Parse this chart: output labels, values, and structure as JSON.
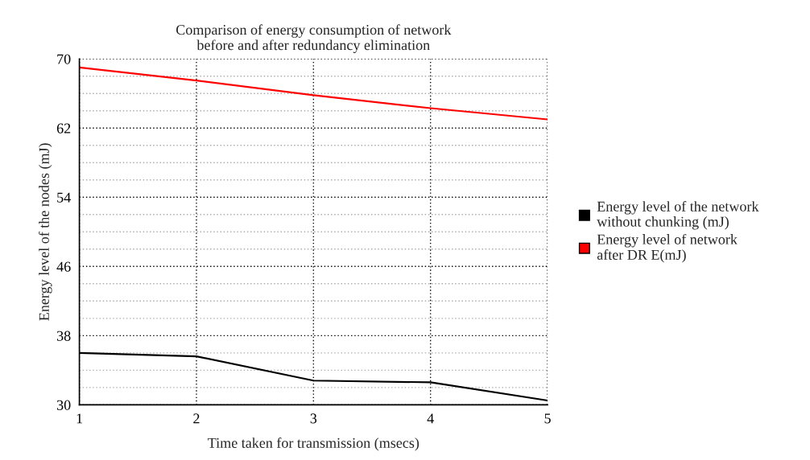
{
  "chart_data": {
    "type": "line",
    "title": "Comparison of energy consumption of network\nbefore and after redundancy elimination",
    "xlabel": "Time taken for transmission (msecs)",
    "ylabel": "Energy level of the nodes (mJ)",
    "x": [
      1,
      2,
      3,
      4,
      5
    ],
    "series": [
      {
        "name": "Energy level of the network\nwithout chunking (mJ)",
        "color": "#000000",
        "values": [
          36.0,
          35.6,
          32.8,
          32.6,
          30.5
        ]
      },
      {
        "name": "Energy level of network\nafter DR E(mJ)",
        "color": "#ff0000",
        "values": [
          69.0,
          67.5,
          65.8,
          64.3,
          63.0
        ]
      }
    ],
    "xlim": [
      1,
      5
    ],
    "xticks": [
      1,
      2,
      3,
      4,
      5
    ],
    "ylim": [
      30,
      70
    ],
    "yticks": [
      30,
      {
        "value": 32,
        "label": null
      },
      {
        "value": 34,
        "label": null
      },
      {
        "value": 36,
        "label": null
      },
      38,
      {
        "value": 40,
        "label": null
      },
      {
        "value": 42,
        "label": null
      },
      {
        "value": 44,
        "label": null
      },
      46,
      {
        "value": 48,
        "label": null
      },
      {
        "value": 50,
        "label": null
      },
      {
        "value": 52,
        "label": null
      },
      54,
      {
        "value": 56,
        "label": null
      },
      {
        "value": 58,
        "label": null
      },
      {
        "value": 60,
        "label": null
      },
      62,
      {
        "value": 64,
        "label": null
      },
      {
        "value": 66,
        "label": null
      },
      {
        "value": 68,
        "label": null
      },
      70
    ],
    "grid": true,
    "legend": "right",
    "marker": "none",
    "line_style": "solid"
  }
}
